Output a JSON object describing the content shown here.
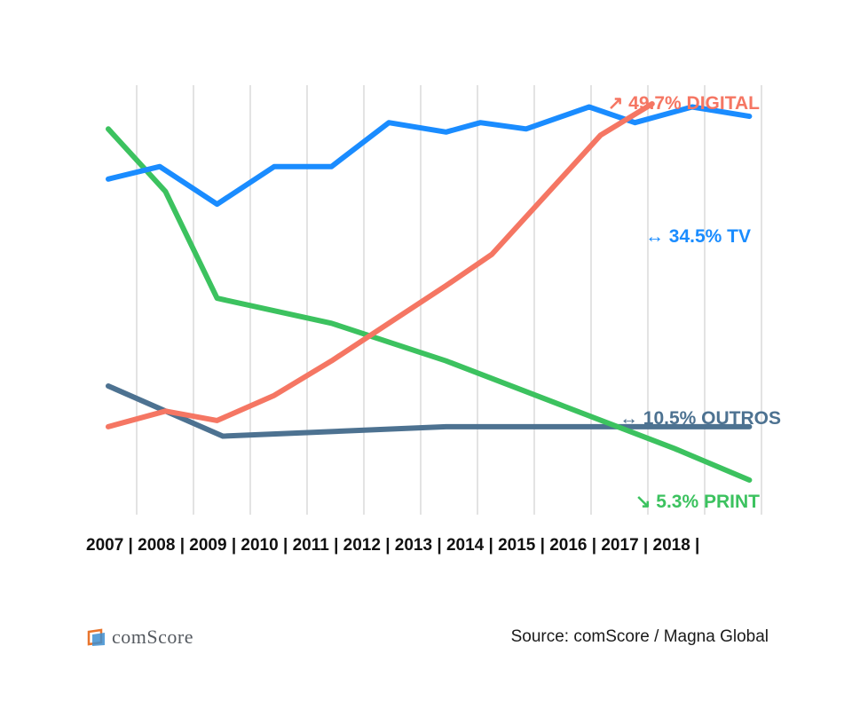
{
  "chart_data": {
    "type": "line",
    "title": "",
    "xlabel": "",
    "ylabel": "",
    "x": [
      "2007",
      "2008",
      "2009",
      "2010",
      "2011",
      "2012",
      "2013",
      "2014",
      "2015",
      "2016",
      "2017",
      "2018"
    ],
    "x_label_text": "2007 | 2008 | 2009 | 2010 | 2011 | 2012 | 2013 | 2014 | 2015 | 2016 | 2017 | 2018 |",
    "ylim": [
      0,
      60
    ],
    "grid": "vertical",
    "series": [
      {
        "name": "DIGITAL",
        "label": "↗ 49.7% DIGITAL",
        "color": "#f57663",
        "points": [
          [
            0,
            8.5
          ],
          [
            1.0,
            11
          ],
          [
            1.9,
            9.5
          ],
          [
            2.9,
            13.5
          ],
          [
            3.9,
            19
          ],
          [
            4.9,
            25
          ],
          [
            5.9,
            31
          ],
          [
            6.7,
            36
          ],
          [
            8.6,
            55
          ],
          [
            9.5,
            65
          ]
        ]
      },
      {
        "name": "TV",
        "label": "↔ 34.5% TV",
        "color": "#1a8cff",
        "points": [
          [
            0,
            48
          ],
          [
            0.9,
            50
          ],
          [
            1.9,
            44
          ],
          [
            2.9,
            50
          ],
          [
            3.9,
            50
          ],
          [
            4.9,
            57
          ],
          [
            5.9,
            55.5
          ],
          [
            6.5,
            57
          ],
          [
            7.3,
            56
          ],
          [
            8.4,
            59.5
          ],
          [
            9.2,
            57
          ],
          [
            10.2,
            59.5
          ],
          [
            11.2,
            58
          ]
        ]
      },
      {
        "name": "PRINT",
        "label": "↘ 5.3% PRINT",
        "color": "#3cc25f",
        "points": [
          [
            0,
            56
          ],
          [
            1.0,
            46
          ],
          [
            1.9,
            29
          ],
          [
            3.9,
            25
          ],
          [
            5.9,
            19
          ],
          [
            7.9,
            12
          ],
          [
            9.9,
            5
          ],
          [
            11.2,
            0
          ]
        ]
      },
      {
        "name": "OUTROS",
        "label": "↔ 10.5% OUTROS",
        "color": "#4d7291",
        "points": [
          [
            0,
            15
          ],
          [
            2.0,
            7
          ],
          [
            5.9,
            8.5
          ],
          [
            11.2,
            8.5
          ]
        ]
      }
    ]
  },
  "footer": {
    "logo_text": "comScore",
    "source": "Source: comScore / Magna Global"
  }
}
